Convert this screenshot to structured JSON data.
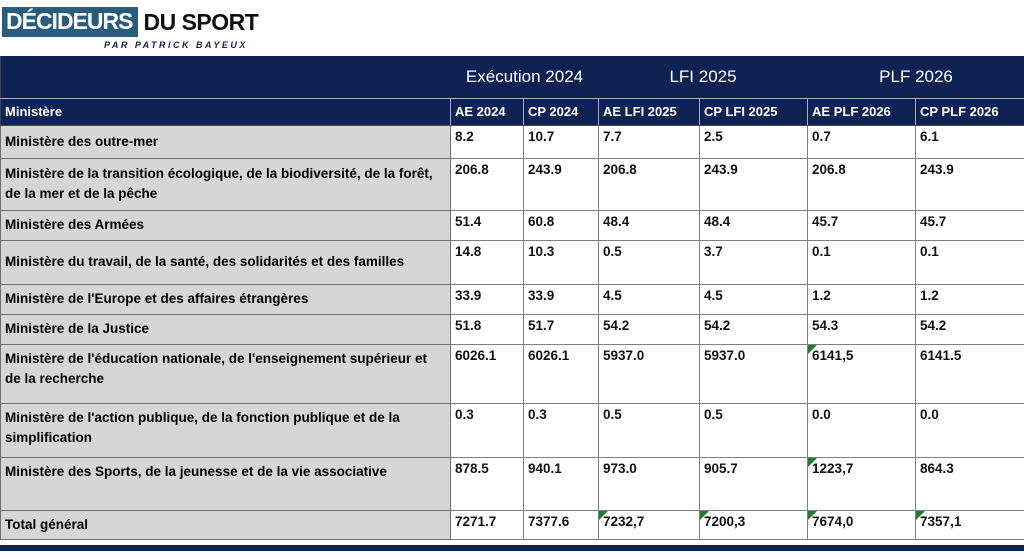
{
  "logo": {
    "primary": "DÉCIDEURS",
    "secondary": "DU SPORT",
    "byline": "PAR PATRICK BAYEUX"
  },
  "colors": {
    "header_navy": "#0e2254",
    "logo_blue": "#2a5c7f",
    "row_label_gray": "#d6d6d6",
    "flag_green": "#1e7c2e"
  },
  "chart_data": {
    "type": "table",
    "title": "",
    "group_headers": [
      "Exécution 2024",
      "LFI 2025",
      "PLF 2026"
    ],
    "columns": [
      "Ministère",
      "AE 2024",
      "CP 2024",
      "AE LFI 2025",
      "CP LFI 2025",
      "AE PLF 2026",
      "CP PLF 2026"
    ],
    "rows": [
      {
        "label": "Ministère des outre-mer",
        "values": [
          "8.2",
          "10.7",
          "7.7",
          "2.5",
          "0.7",
          "6.1"
        ],
        "flags": []
      },
      {
        "label": "Ministère de la transition écologique, de la biodiversité, de la forêt, de la mer et de la pêche",
        "values": [
          "206.8",
          "243.9",
          "206.8",
          "243.9",
          "206.8",
          "243.9"
        ],
        "flags": []
      },
      {
        "label": "Ministère des Armées",
        "values": [
          "51.4",
          "60.8",
          "48.4",
          "48.4",
          "45.7",
          "45.7"
        ],
        "flags": []
      },
      {
        "label": "Ministère du travail, de la santé, des solidarités et des familles",
        "values": [
          "14.8",
          "10.3",
          "0.5",
          "3.7",
          "0.1",
          "0.1"
        ],
        "flags": []
      },
      {
        "label": "Ministère de l'Europe et des affaires étrangères",
        "values": [
          "33.9",
          "33.9",
          "4.5",
          "4.5",
          "1.2",
          "1.2"
        ],
        "flags": []
      },
      {
        "label": "Ministère de la Justice",
        "values": [
          "51.8",
          "51.7",
          "54.2",
          "54.2",
          "54.3",
          "54.2"
        ],
        "flags": []
      },
      {
        "label": "Ministère de l'éducation nationale, de l'enseignement supérieur et de la recherche",
        "values": [
          "6026.1",
          "6026.1",
          "5937.0",
          "5937.0",
          "6141,5",
          "6141.5"
        ],
        "flags": [
          4
        ]
      },
      {
        "label": "Ministère de l'action publique, de la fonction publique et de la simplification",
        "values": [
          "0.3",
          "0.3",
          "0.5",
          "0.5",
          "0.0",
          "0.0"
        ],
        "flags": []
      },
      {
        "label": "Ministère des Sports, de la jeunesse et de la vie associative",
        "values": [
          "878.5",
          "940.1",
          "973.0",
          "905.7",
          "1223,7",
          "864.3"
        ],
        "flags": [
          4
        ]
      },
      {
        "label": "Total général",
        "values": [
          "7271.7",
          "7377.6",
          "7232,7",
          "7200,3",
          "7674,0",
          "7357,1"
        ],
        "flags": [
          2,
          3,
          4,
          5
        ]
      }
    ]
  }
}
